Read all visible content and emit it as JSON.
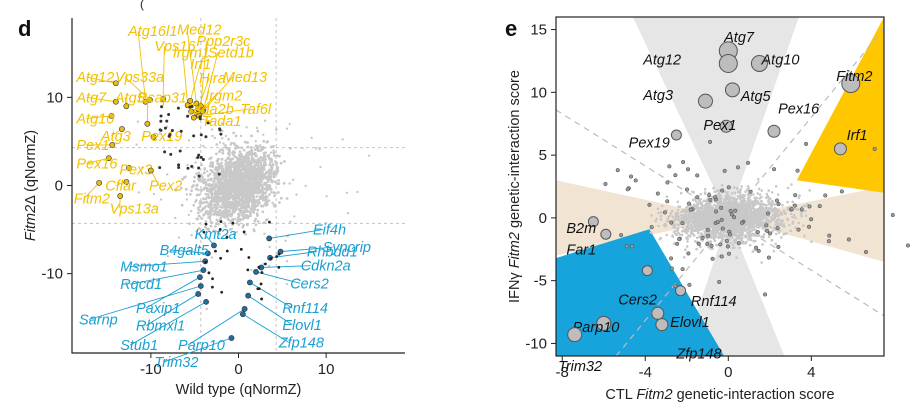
{
  "header_fragment": "(",
  "chart_data": [
    {
      "panel": "d",
      "type": "scatter",
      "xlabel": "Wild type (qNormZ)",
      "ylabel_italic": "Fitm2",
      "ylabel_rest": "Δ (qNormZ)",
      "xlim": [
        -19,
        19
      ],
      "ylim": [
        -19,
        19
      ],
      "xticks": [
        -10,
        0,
        10
      ],
      "yticks": [
        10,
        0,
        -10
      ],
      "threshold_lines": [
        4.3,
        -4.3
      ],
      "colors": {
        "up": "#f2c200",
        "down": "#1a9fd2",
        "up_point": "#e8bd12",
        "down_point": "#1f6f9e",
        "bg_point": "#c8c8c8",
        "threshold": "#c4c4c4"
      },
      "up_labels": [
        {
          "text": "Atg16l1",
          "x": -12.6,
          "y": 17.5,
          "px": -10.6,
          "py": 9.5
        },
        {
          "text": "Med12",
          "x": -7.0,
          "y": 17.7,
          "px": -4.8,
          "py": 9.3
        },
        {
          "text": "Ppp2r3c",
          "x": -4.8,
          "y": 16.4,
          "px": -4.3,
          "py": 9.0
        },
        {
          "text": "Vps16",
          "x": -9.6,
          "y": 15.8,
          "px": -8.6,
          "py": 9.8
        },
        {
          "text": "Irgm1",
          "x": -7.5,
          "y": 15.1,
          "px": -5.8,
          "py": 9.1
        },
        {
          "text": "Setd1b",
          "x": -3.5,
          "y": 15.1,
          "px": -4.0,
          "py": 8.6
        },
        {
          "text": "Irf1",
          "x": -5.5,
          "y": 13.8,
          "px": -5.5,
          "py": 9.6
        },
        {
          "text": "Atg12",
          "x": -18.5,
          "y": 12.3,
          "px": -14.0,
          "py": 11.6
        },
        {
          "text": "Vps33a",
          "x": -14.1,
          "y": 12.3,
          "px": -10.1,
          "py": 9.7
        },
        {
          "text": "Hira",
          "x": -4.5,
          "y": 12.2,
          "px": -4.6,
          "py": 8.7
        },
        {
          "text": "Med13",
          "x": -1.8,
          "y": 12.3,
          "px": -4.1,
          "py": 8.4
        },
        {
          "text": "Atg7",
          "x": -18.5,
          "y": 10.0,
          "px": -14.0,
          "py": 9.5
        },
        {
          "text": "Atg5",
          "x": -14.1,
          "y": 10.0,
          "px": -12.8,
          "py": 9.0
        },
        {
          "text": "Bcap31",
          "x": -11.5,
          "y": 10.0,
          "px": -10.4,
          "py": 7.0
        },
        {
          "text": "Irgm2",
          "x": -3.8,
          "y": 10.2,
          "px": -4.7,
          "py": 8.1
        },
        {
          "text": "Tada2b",
          "x": -6.0,
          "y": 8.7,
          "px": -5.4,
          "py": 8.4
        },
        {
          "text": "Taf6l",
          "x": 0.2,
          "y": 8.7,
          "px": -4.5,
          "py": 7.9
        },
        {
          "text": "Atg10",
          "x": -18.5,
          "y": 7.6,
          "px": -14.5,
          "py": 7.9
        },
        {
          "text": "Atg3",
          "x": -15.7,
          "y": 5.6,
          "px": -13.3,
          "py": 6.4
        },
        {
          "text": "Pex19",
          "x": -11.1,
          "y": 5.6,
          "px": -9.7,
          "py": 5.5
        },
        {
          "text": "Tada1",
          "x": -4.2,
          "y": 7.3,
          "px": -5.1,
          "py": 7.7
        },
        {
          "text": "Pex1",
          "x": -18.5,
          "y": 4.6,
          "px": -14.4,
          "py": 4.6
        },
        {
          "text": "Pex16",
          "x": -18.5,
          "y": 2.5,
          "px": -14.8,
          "py": 3.1
        },
        {
          "text": "Pex3",
          "x": -13.6,
          "y": 1.8,
          "px": -12.5,
          "py": 2.0
        },
        {
          "text": "Cflar",
          "x": -15.2,
          "y": 0.0,
          "px": -12.8,
          "py": 0.4
        },
        {
          "text": "Pex2",
          "x": -10.2,
          "y": 0.0,
          "px": -10.0,
          "py": 1.7
        },
        {
          "text": "Fitm2",
          "x": -18.8,
          "y": -1.5,
          "px": -15.9,
          "py": 0.3
        },
        {
          "text": "Vps13a",
          "x": -14.7,
          "y": -2.6,
          "px": -13.5,
          "py": -1.2
        }
      ],
      "down_labels": [
        {
          "text": "Eif4h",
          "x": 8.5,
          "y": -5.0,
          "px": 3.5,
          "py": -6.0
        },
        {
          "text": "Kmt2a",
          "x": -5.0,
          "y": -5.5,
          "px": -2.8,
          "py": -6.8
        },
        {
          "text": "Syncrip",
          "x": 9.6,
          "y": -7.0,
          "px": 4.8,
          "py": -7.5
        },
        {
          "text": "B4galt5",
          "x": -9.0,
          "y": -7.3,
          "px": -3.5,
          "py": -7.7
        },
        {
          "text": "Rhbdd1",
          "x": 7.8,
          "y": -7.5,
          "px": 3.6,
          "py": -8.2
        },
        {
          "text": "Msmo1",
          "x": -13.5,
          "y": -9.2,
          "px": -3.8,
          "py": -8.6
        },
        {
          "text": "Cdkn2a",
          "x": 7.1,
          "y": -9.1,
          "px": 2.6,
          "py": -9.3
        },
        {
          "text": "Rqcd1",
          "x": -13.5,
          "y": -11.2,
          "px": -4.0,
          "py": -9.6
        },
        {
          "text": "Cers2",
          "x": 5.9,
          "y": -11.1,
          "px": 2.0,
          "py": -9.8
        },
        {
          "text": "Paxip1",
          "x": -11.7,
          "y": -13.9,
          "px": -4.4,
          "py": -10.4
        },
        {
          "text": "Sarnp",
          "x": -18.2,
          "y": -15.2,
          "px": -4.3,
          "py": -11.4
        },
        {
          "text": "Rnf114",
          "x": 5.0,
          "y": -13.9,
          "px": 1.3,
          "py": -11.0
        },
        {
          "text": "Rbmxl1",
          "x": -11.7,
          "y": -15.9,
          "px": -4.6,
          "py": -12.3
        },
        {
          "text": "Elovl1",
          "x": 5.0,
          "y": -15.8,
          "px": 1.1,
          "py": -12.5
        },
        {
          "text": "Stub1",
          "x": -13.5,
          "y": -18.1,
          "px": -3.7,
          "py": -13.2
        },
        {
          "text": "Parp10",
          "x": -6.9,
          "y": -18.1,
          "px": 0.7,
          "py": -14.0
        },
        {
          "text": "Zfp148",
          "x": 4.6,
          "y": -17.8,
          "px": 0.5,
          "py": -14.6
        },
        {
          "text": "Trim32",
          "x": -9.6,
          "y": -20.0,
          "px": -0.8,
          "py": -17.3
        }
      ]
    },
    {
      "panel": "e",
      "type": "scatter",
      "xlabel_pre": "CTL ",
      "xlabel_italic": "Fitm2",
      "xlabel_post": " genetic-interaction score",
      "ylabel_pre": "IFNγ ",
      "ylabel_italic": "Fitm2",
      "ylabel_post": " genetic-interaction score",
      "xlim": [
        -8.3,
        7.5
      ],
      "ylim": [
        -11,
        16
      ],
      "xticks": [
        -8,
        -4,
        0,
        4
      ],
      "yticks": [
        15,
        10,
        5,
        0,
        -5,
        -10
      ],
      "colors": {
        "up": "#ffc700",
        "down": "#17a3dc",
        "gray": "#e6e6e6",
        "beige": "#f1e4d3",
        "bg_point": "#c8c8c8",
        "hit_fill": "#bdbdbd",
        "hit_edge": "#555555"
      },
      "up_wedge": [
        [
          7.5,
          16
        ],
        [
          3.3,
          3.0
        ],
        [
          7.5,
          2.0
        ]
      ],
      "down_wedge": [
        [
          -8.3,
          -3.2
        ],
        [
          -3.8,
          -0.9
        ],
        [
          -0.2,
          -11
        ],
        [
          -8.3,
          -11
        ]
      ],
      "gray_wedge": [
        [
          -4.6,
          16
        ],
        [
          3.4,
          16
        ],
        [
          0,
          0
        ]
      ],
      "gray_wedge_low": [
        [
          -2.2,
          -11
        ],
        [
          2.7,
          -11
        ],
        [
          0,
          0
        ]
      ],
      "beige_wedge_left": [
        [
          -8.3,
          3.0
        ],
        [
          -8.3,
          -3.0
        ],
        [
          0,
          0
        ]
      ],
      "beige_wedge_right": [
        [
          7.5,
          2.5
        ],
        [
          7.5,
          -3.5
        ],
        [
          0,
          0
        ]
      ],
      "labels": [
        {
          "text": "Atg7",
          "x": -0.2,
          "y": 14.4,
          "px": 0.0,
          "py": 13.3,
          "size": 9
        },
        {
          "text": "Atg12",
          "x": -4.1,
          "y": 12.6,
          "px": 0.0,
          "py": 12.3,
          "size": 9
        },
        {
          "text": "Atg10",
          "x": 1.6,
          "y": 12.6,
          "px": 1.5,
          "py": 12.3,
          "size": 8
        },
        {
          "text": "Fitm2",
          "x": 5.2,
          "y": 11.3,
          "px": 5.9,
          "py": 10.7,
          "size": 9
        },
        {
          "text": "Atg3",
          "x": -4.1,
          "y": 9.8,
          "px": -1.1,
          "py": 9.3,
          "size": 7
        },
        {
          "text": "Atg5",
          "x": 0.6,
          "y": 9.7,
          "px": 0.2,
          "py": 10.2,
          "size": 7
        },
        {
          "text": "Pex16",
          "x": 2.4,
          "y": 8.7,
          "px": 2.2,
          "py": 6.9,
          "size": 6
        },
        {
          "text": "Pex1",
          "x": -1.2,
          "y": 7.4,
          "px": -0.1,
          "py": 7.3,
          "size": 6
        },
        {
          "text": "Irf1",
          "x": 5.7,
          "y": 6.6,
          "px": 5.4,
          "py": 5.5,
          "size": 6
        },
        {
          "text": "Pex19",
          "x": -4.8,
          "y": 6.0,
          "px": -2.5,
          "py": 6.6,
          "size": 5
        },
        {
          "text": "B2m",
          "x": -7.8,
          "y": -0.8,
          "px": -6.5,
          "py": -0.3,
          "size": 5
        },
        {
          "text": "Far1",
          "x": -7.8,
          "y": -2.5,
          "px": -5.9,
          "py": -1.3,
          "size": 5
        },
        {
          "text": "Cers2",
          "x": -5.3,
          "y": -6.5,
          "px": -3.9,
          "py": -4.2,
          "size": 5
        },
        {
          "text": "Rnf114",
          "x": -1.8,
          "y": -6.6,
          "px": -2.3,
          "py": -5.8,
          "size": 5
        },
        {
          "text": "Parp10",
          "x": -7.5,
          "y": -8.7,
          "px": -6.0,
          "py": -8.4,
          "size": 7
        },
        {
          "text": "Elovl1",
          "x": -2.8,
          "y": -8.3,
          "px": -3.4,
          "py": -7.6,
          "size": 6
        },
        {
          "text": "Zfp148",
          "x": -2.5,
          "y": -10.8,
          "px": -3.2,
          "py": -8.5,
          "size": 6
        },
        {
          "text": "Trim32",
          "x": -8.2,
          "y": -11.8,
          "px": -7.4,
          "py": -9.3,
          "size": 7
        }
      ]
    }
  ]
}
